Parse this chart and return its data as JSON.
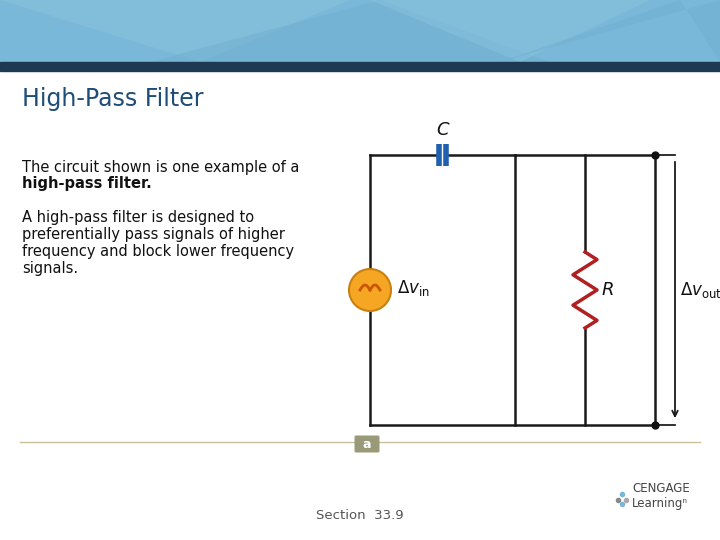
{
  "title": "High-Pass Filter",
  "title_color": "#1e4d78",
  "bg_color": "#ffffff",
  "header_bg": "#7ab8d9",
  "header_bar": "#1e3a52",
  "text1_normal": "The circuit shown is one example of a ",
  "text1_bold": "high-pass filter.",
  "text2": "A high-pass filter is designed to\npreferentially pass signals of higher\nfrequency and block lower frequency\nsignals.",
  "footer_text": "Section  33.9",
  "circuit_line_color": "#1a1a1a",
  "capacitor_color": "#2060b0",
  "resistor_color": "#b02020",
  "source_color": "#f5a623",
  "source_border": "#c88010",
  "label_a_bg": "#9a9a78",
  "separator_color": "#c8c098",
  "dot_color": "#111111"
}
